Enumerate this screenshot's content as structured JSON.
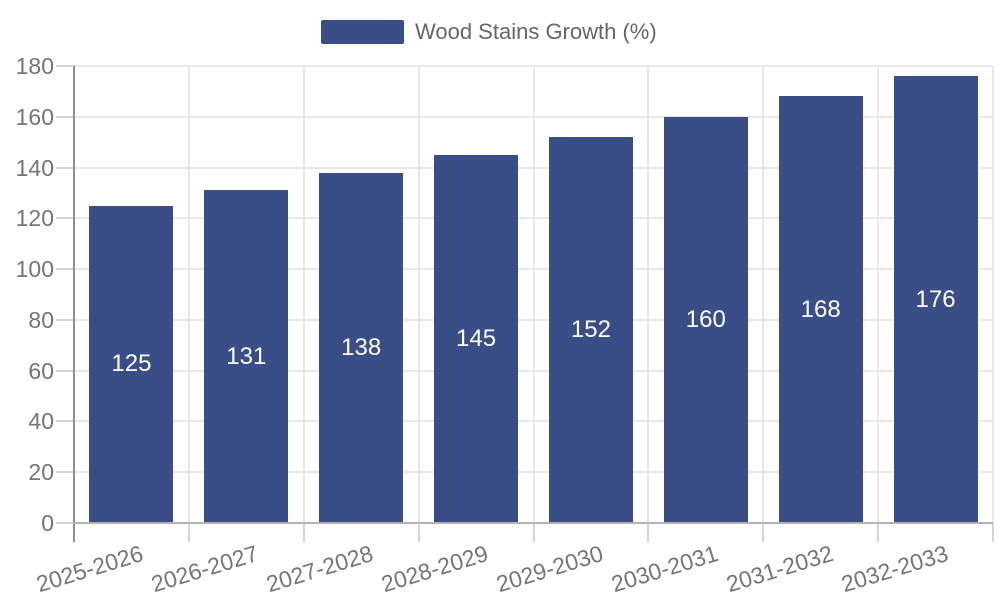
{
  "chart_data": {
    "type": "bar",
    "title": "Wood Stains Growth (%)",
    "legend": {
      "label": "Wood Stains Growth (%)",
      "position": "top-center"
    },
    "categories": [
      "2025-2026",
      "2026-2027",
      "2027-2028",
      "2028-2029",
      "2029-2030",
      "2030-2031",
      "2031-2032",
      "2032-2033"
    ],
    "values": [
      125,
      131,
      138,
      145,
      152,
      160,
      168,
      176
    ],
    "xlabel": "",
    "ylabel": "",
    "ylim": [
      0,
      180
    ],
    "ytick_step": 20,
    "grid": "horizontal-and-vertical",
    "value_labels_inside_bars": true,
    "colors": {
      "bar": "#394e87",
      "value_label": "#ffffff",
      "axis_label": "#757575",
      "legend_text": "#666666",
      "gridline": "#e8e8e8",
      "tick": "#d4d4d4",
      "y_axis_line": "#8f8f8f",
      "x_axis_line": "#b3b3b3",
      "background": "#ffffff"
    }
  }
}
